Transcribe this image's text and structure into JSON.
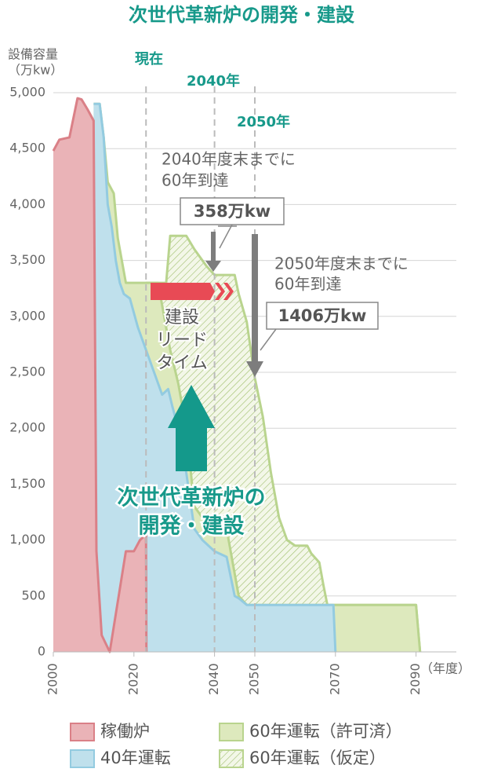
{
  "chart_data": {
    "type": "area",
    "title": "次世代革新炉の開発・建設",
    "y_label": [
      "設備容量",
      "（万kw）"
    ],
    "x_unit": "（年度）",
    "xlim": [
      2000,
      2100
    ],
    "xticks": [
      2000,
      2020,
      2040,
      2050,
      2070,
      2090
    ],
    "ylim": [
      0,
      5000
    ],
    "yticks": [
      0,
      500,
      {
        "value": 1000,
        "label": "1,000"
      },
      {
        "value": 1500,
        "label": "1,500"
      },
      {
        "value": 2000,
        "label": "2,000"
      },
      {
        "value": 2500,
        "label": "2,500"
      },
      {
        "value": 3000,
        "label": "3,000"
      },
      {
        "value": 3500,
        "label": "3,500"
      },
      {
        "value": 4000,
        "label": "4,000"
      },
      {
        "value": 4500,
        "label": "4,500"
      },
      {
        "value": 5000,
        "label": "5,000"
      }
    ],
    "grid": true,
    "series": [
      {
        "name": "60年運転（仮定）",
        "color": "#b9d48e",
        "hatched": true,
        "x": [
          2023,
          2028,
          2029,
          2033,
          2035,
          2038,
          2040,
          2045,
          2046,
          2048,
          2050,
          2052,
          2054,
          2056,
          2058,
          2060,
          2063,
          2064,
          2066,
          2067,
          2068,
          2090,
          2091
        ],
        "values": [
          3300,
          3300,
          3720,
          3720,
          3600,
          3450,
          3370,
          3370,
          3200,
          2950,
          2450,
          2100,
          1600,
          1200,
          1000,
          950,
          950,
          880,
          800,
          600,
          420,
          420,
          0
        ]
      },
      {
        "name": "60年運転（許可済）",
        "color": "#b9d48e",
        "fill": "#dde9bd",
        "x": [
          2010,
          2011.5,
          2012.5,
          2013.5,
          2015,
          2016,
          2017,
          2018,
          2026,
          2027,
          2029,
          2031,
          2033,
          2035,
          2037,
          2040,
          2043,
          2045,
          2046,
          2048,
          2090,
          2091
        ],
        "values": [
          4900,
          4900,
          4600,
          4200,
          4100,
          3700,
          3500,
          3300,
          3300,
          3100,
          2700,
          2400,
          2000,
          1300,
          1200,
          1150,
          1100,
          700,
          500,
          420,
          420,
          0
        ]
      },
      {
        "name": "40年運転",
        "color": "#93cbe0",
        "fill": "#bfe0ec",
        "x": [
          2010,
          2011.5,
          2012.5,
          2013.5,
          2014.5,
          2015.5,
          2016.5,
          2017.5,
          2019,
          2021,
          2023,
          2025,
          2027,
          2028.5,
          2029.5,
          2031,
          2033,
          2035,
          2037,
          2040,
          2043,
          2045,
          2046,
          2048,
          2069.5,
          2070
        ],
        "values": [
          4900,
          4900,
          4600,
          4000,
          3800,
          3500,
          3300,
          3200,
          3160,
          2900,
          2700,
          2500,
          2300,
          2350,
          2200,
          2000,
          1600,
          1100,
          1000,
          900,
          850,
          500,
          480,
          420,
          420,
          0
        ]
      },
      {
        "name": "稼働炉",
        "color": "#da8087",
        "fill": "#eab3b7",
        "x": [
          2000,
          2001.5,
          2004,
          2006,
          2007,
          2008.5,
          2010,
          2010.7,
          2012,
          2014,
          2016,
          2018,
          2020,
          2021.5,
          2023,
          2023.1
        ],
        "values": [
          4480,
          4580,
          4600,
          4950,
          4940,
          4850,
          4750,
          900,
          150,
          0,
          450,
          900,
          900,
          1000,
          1050,
          0
        ]
      }
    ],
    "reference_lines": [
      {
        "x": 2023,
        "label": "現在"
      },
      {
        "x": 2040,
        "label": "2040年"
      },
      {
        "x": 2050,
        "label": "2050年"
      }
    ],
    "annotations": [
      {
        "lines": [
          "2040年度末までに",
          "60年到達"
        ],
        "value_label": "358万kw"
      },
      {
        "lines": [
          "2050年度末までに",
          "60年到達"
        ],
        "value_label": "1406万kw"
      },
      {
        "lines": [
          "建設",
          "リード",
          "タイム"
        ]
      },
      {
        "lines": [
          "次世代革新炉の",
          "開発・建設"
        ]
      }
    ]
  }
}
